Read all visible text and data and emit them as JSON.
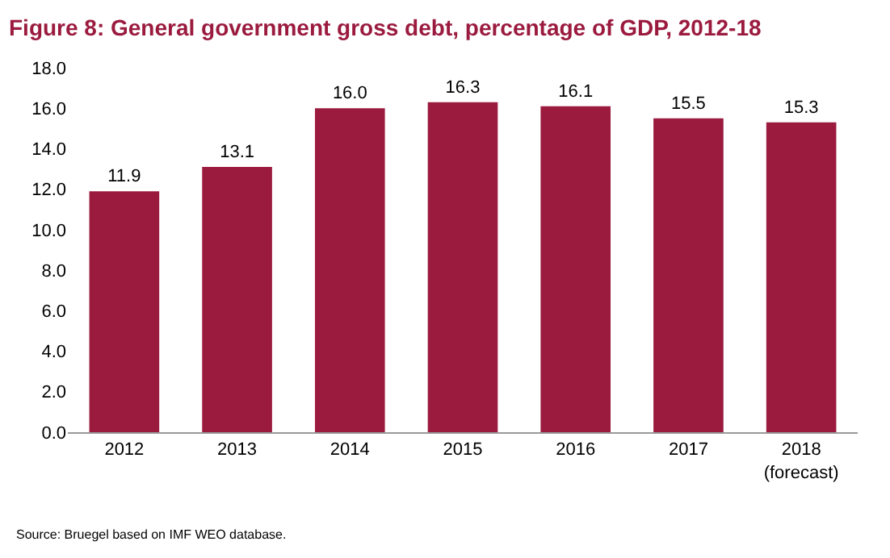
{
  "chart_data": {
    "type": "bar",
    "title": "Figure 8: General government gross debt, percentage of GDP, 2012-18",
    "categories": [
      "2012",
      "2013",
      "2014",
      "2015",
      "2016",
      "2017",
      "2018\n(forecast)"
    ],
    "values": [
      11.9,
      13.1,
      16.0,
      16.3,
      16.1,
      15.5,
      15.3
    ],
    "color": "#9b1b3f",
    "value_labels": [
      "11.9",
      "13.1",
      "16.0",
      "16.3",
      "16.1",
      "15.5",
      "15.3"
    ],
    "ylim": [
      0,
      18
    ],
    "yticks": [
      {
        "value": 0,
        "label": "0.0"
      },
      {
        "value": 2,
        "label": "2.0"
      },
      {
        "value": 4,
        "label": "4.0"
      },
      {
        "value": 6,
        "label": "6.0"
      },
      {
        "value": 8,
        "label": "8.0"
      },
      {
        "value": 10,
        "label": "10.0"
      },
      {
        "value": 12,
        "label": "12.0"
      },
      {
        "value": 14,
        "label": "14.0"
      },
      {
        "value": 16,
        "label": "16.0"
      },
      {
        "value": 18,
        "label": "18.0"
      }
    ],
    "annotations": [
      "Source: Bruegel based on IMF WEO database."
    ],
    "legend": false
  }
}
